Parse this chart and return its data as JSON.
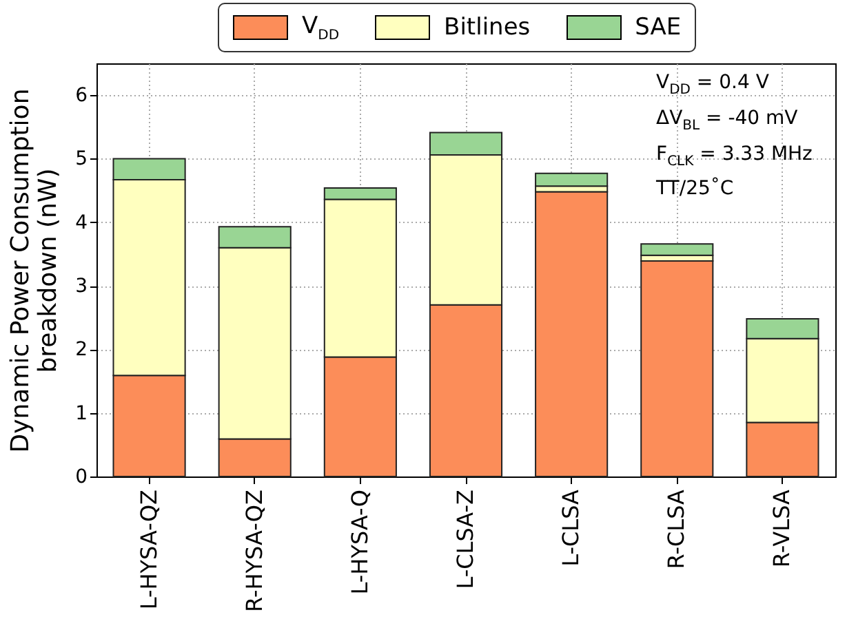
{
  "chart_data": {
    "type": "bar",
    "stacked": true,
    "ylabel": "Dynamic Power Consumption breakdown (nW)",
    "categories": [
      "L-HYSA-QZ",
      "R-HYSA-QZ",
      "L-HYSA-Q",
      "L-CLSA-Z",
      "L-CLSA",
      "R-CLSA",
      "R-VLSA"
    ],
    "series": [
      {
        "name": "V$_{DD}$",
        "color": "#fc8d59",
        "values": [
          1.59,
          0.59,
          1.88,
          2.7,
          4.48,
          3.39,
          0.85
        ]
      },
      {
        "name": "Bitlines",
        "color": "#ffffbf",
        "values": [
          3.08,
          3.01,
          2.48,
          2.36,
          0.09,
          0.09,
          1.32
        ]
      },
      {
        "name": "SAE",
        "color": "#99d594",
        "values": [
          0.33,
          0.33,
          0.18,
          0.35,
          0.2,
          0.18,
          0.31
        ]
      }
    ],
    "ylim": [
      0,
      6.5
    ],
    "yticks": [
      0,
      1,
      2,
      3,
      4,
      5,
      6
    ],
    "grid": true,
    "legend": "top",
    "annotations": [
      "V$_{DD}$ = 0.4 V",
      "ΔV$_{BL}$ = -40 mV",
      "F$_{CLK}$ = 3.33 MHz",
      "TT/25˚C"
    ]
  }
}
